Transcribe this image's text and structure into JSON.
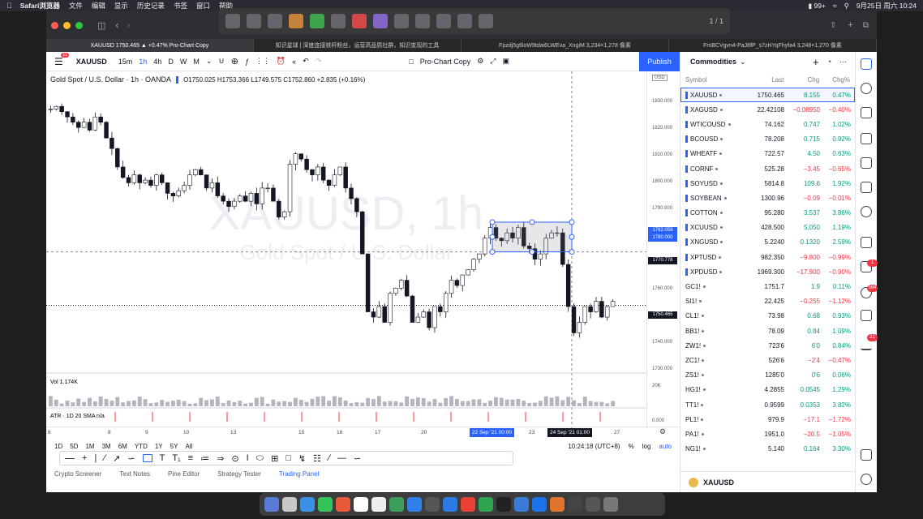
{
  "menubar": {
    "app": "Safari浏览器",
    "items": [
      "文件",
      "编辑",
      "显示",
      "历史记录",
      "书签",
      "窗口",
      "帮助"
    ],
    "battery": "99+",
    "datetime": "9月25日 周六 10:24"
  },
  "drawbar": {
    "page": "1 / 1"
  },
  "tabs": [
    "XAUUSD 1750.465 ▲ +0.47% Pro-Chart Copy",
    "知识星球 | 深度连接铁杆粉丝，运营高品质社群，知识变现的工具",
    "Fpzdj5g6loW9tdai6LWEva_XngiM 3,234×1,278 像素",
    "FmBCVgvn4-PaJ8fP_s7zHYqFhyfa4 3,248×1,270 像素"
  ],
  "toolbar": {
    "notif": "11",
    "symbol": "XAUUSD",
    "intervals": [
      "15m",
      "1h",
      "4h",
      "D",
      "W",
      "M"
    ],
    "layout_name": "Pro-Chart Copy",
    "publish": "Publish"
  },
  "legend": {
    "title": "Gold Spot / U.S. Dollar · 1h · OANDA",
    "ohlc": "O1750.025 H1753.366 L1749.575 C1752.860 +2.835 (+0.16%)",
    "watermark_symbol": "XAUUSD, 1h",
    "watermark_name": "Gold Spot / U.S. Dollar",
    "vol": "Vol 1.174K",
    "atr": "ATR · 1D 20 SMA  n/a",
    "currency": "USD"
  },
  "price_axis": {
    "labels": [
      "1830.000",
      "1820.000",
      "1810.000",
      "1800.000",
      "1790.000",
      "1780.000",
      "1770.000",
      "1760.000",
      "1750.000",
      "1740.000",
      "1730.000"
    ],
    "tag_upper": "1782.059",
    "tag_upper2": "1780.000",
    "tag_mid": "1770.778",
    "tag_last": "1750.465",
    "vol_label": "20K",
    "atr_label": "0.000"
  },
  "time_axis": {
    "labels": [
      "6",
      "8",
      "9",
      "10",
      "13",
      "15",
      "16",
      "17",
      "20",
      "23",
      "27"
    ],
    "range_start": "22 Sep '21  00:00",
    "range_end": "24 Sep '21  01:00"
  },
  "chart_data": {
    "type": "candlestick",
    "symbol": "XAUUSD",
    "interval": "1h",
    "ylim": [
      1730,
      1835
    ],
    "close_path": [
      1825,
      1826,
      1824,
      1822,
      1820,
      1818,
      1820,
      1817,
      1822,
      1820,
      1814,
      1810,
      1803,
      1799,
      1797,
      1800,
      1797,
      1798,
      1796,
      1800,
      1797,
      1793,
      1792,
      1794,
      1796,
      1800,
      1802,
      1800,
      1795,
      1797,
      1792,
      1790,
      1788,
      1790,
      1792,
      1790,
      1793,
      1789,
      1795,
      1795,
      1790,
      1784,
      1786,
      1804,
      1808,
      1806,
      1802,
      1800,
      1803,
      1798,
      1796,
      1800,
      1803,
      1795,
      1791,
      1786,
      1770,
      1748,
      1746,
      1750,
      1744,
      1755,
      1757,
      1760,
      1754,
      1744,
      1746,
      1748,
      1742,
      1750,
      1748,
      1755,
      1760,
      1758,
      1762,
      1764,
      1768,
      1770,
      1776,
      1780,
      1776,
      1775,
      1778,
      1776,
      1780,
      1773,
      1772,
      1768,
      1770,
      1776,
      1778,
      1778,
      1766,
      1750,
      1740,
      1744,
      1750,
      1748,
      1752,
      1746,
      1750,
      1752
    ],
    "last": 1750.465,
    "rectangle": {
      "from_price": 1770.778,
      "to_price": 1782.059
    }
  },
  "range_bar": {
    "ranges": [
      "1D",
      "5D",
      "1M",
      "3M",
      "6M",
      "YTD",
      "1Y",
      "5Y",
      "All"
    ],
    "clock": "10:24:18 (UTC+8)",
    "pct": "%",
    "log": "log",
    "auto": "auto"
  },
  "bottom_panel": {
    "tabs": [
      "Crypto Screener",
      "Text Notes",
      "Pine Editor",
      "Strategy Tester",
      "Trading Panel"
    ]
  },
  "watchlist": {
    "title": "Commodities",
    "columns": [
      "Symbol",
      "Last",
      "Chg",
      "Chg%"
    ],
    "rows": [
      {
        "s": "XAUUSD",
        "l": "1750.465",
        "c": "8.155",
        "p": "0.47%",
        "up": true
      },
      {
        "s": "XAGUSD",
        "l": "22.42108",
        "c": "−0.08950",
        "p": "−0.40%",
        "up": false
      },
      {
        "s": "WTICOUSD",
        "l": "74.162",
        "c": "0.747",
        "p": "1.02%",
        "up": true
      },
      {
        "s": "BCOUSD",
        "l": "78.208",
        "c": "0.715",
        "p": "0.92%",
        "up": true
      },
      {
        "s": "WHEATF",
        "l": "722.57",
        "c": "4.50",
        "p": "0.63%",
        "up": true
      },
      {
        "s": "CORNF",
        "l": "525.28",
        "c": "−3.45",
        "p": "−0.65%",
        "up": false
      },
      {
        "s": "SOYUSD",
        "l": "5814.8",
        "c": "109.6",
        "p": "1.92%",
        "up": true
      },
      {
        "s": "SOYBEAN",
        "l": "1300.96",
        "c": "−0.09",
        "p": "−0.01%",
        "up": false
      },
      {
        "s": "COTTON",
        "l": "95.280",
        "c": "3.537",
        "p": "3.86%",
        "up": true
      },
      {
        "s": "XCUUSD",
        "l": "428.500",
        "c": "5.050",
        "p": "1.19%",
        "up": true
      },
      {
        "s": "XNGUSD",
        "l": "5.2240",
        "c": "0.1320",
        "p": "2.59%",
        "up": true
      },
      {
        "s": "XPTUSD",
        "l": "982.350",
        "c": "−9.800",
        "p": "−0.99%",
        "up": false
      },
      {
        "s": "XPDUSD",
        "l": "1969.300",
        "c": "−17.900",
        "p": "−0.90%",
        "up": false
      },
      {
        "s": "GC1!",
        "l": "1751.7",
        "c": "1.9",
        "p": "0.11%",
        "up": true
      },
      {
        "s": "SI1!",
        "l": "22.425",
        "c": "−0.255",
        "p": "−1.12%",
        "up": false
      },
      {
        "s": "CL1!",
        "l": "73.98",
        "c": "0.68",
        "p": "0.93%",
        "up": true
      },
      {
        "s": "BB1!",
        "l": "78.09",
        "c": "0.84",
        "p": "1.09%",
        "up": true
      },
      {
        "s": "ZW1!",
        "l": "723'6",
        "c": "6'0",
        "p": "0.84%",
        "up": true
      },
      {
        "s": "ZC1!",
        "l": "526'6",
        "c": "−2'4",
        "p": "−0.47%",
        "up": false
      },
      {
        "s": "ZS1!",
        "l": "1285'0",
        "c": "0'6",
        "p": "0.06%",
        "up": true
      },
      {
        "s": "HG1!",
        "l": "4.2855",
        "c": "0.0545",
        "p": "1.29%",
        "up": true
      },
      {
        "s": "TT1!",
        "l": "0.9599",
        "c": "0.0353",
        "p": "3.82%",
        "up": true
      },
      {
        "s": "PL1!",
        "l": "979.9",
        "c": "−17.1",
        "p": "−1.72%",
        "up": false
      },
      {
        "s": "PA1!",
        "l": "1951.0",
        "c": "−20.5",
        "p": "−1.05%",
        "up": false
      },
      {
        "s": "NG1!",
        "l": "5.140",
        "c": "0.164",
        "p": "3.30%",
        "up": true
      }
    ],
    "footer_symbol": "XAUUSD"
  },
  "rail_badges": {
    "b1": "1",
    "b2": "594",
    "b3": "21"
  }
}
